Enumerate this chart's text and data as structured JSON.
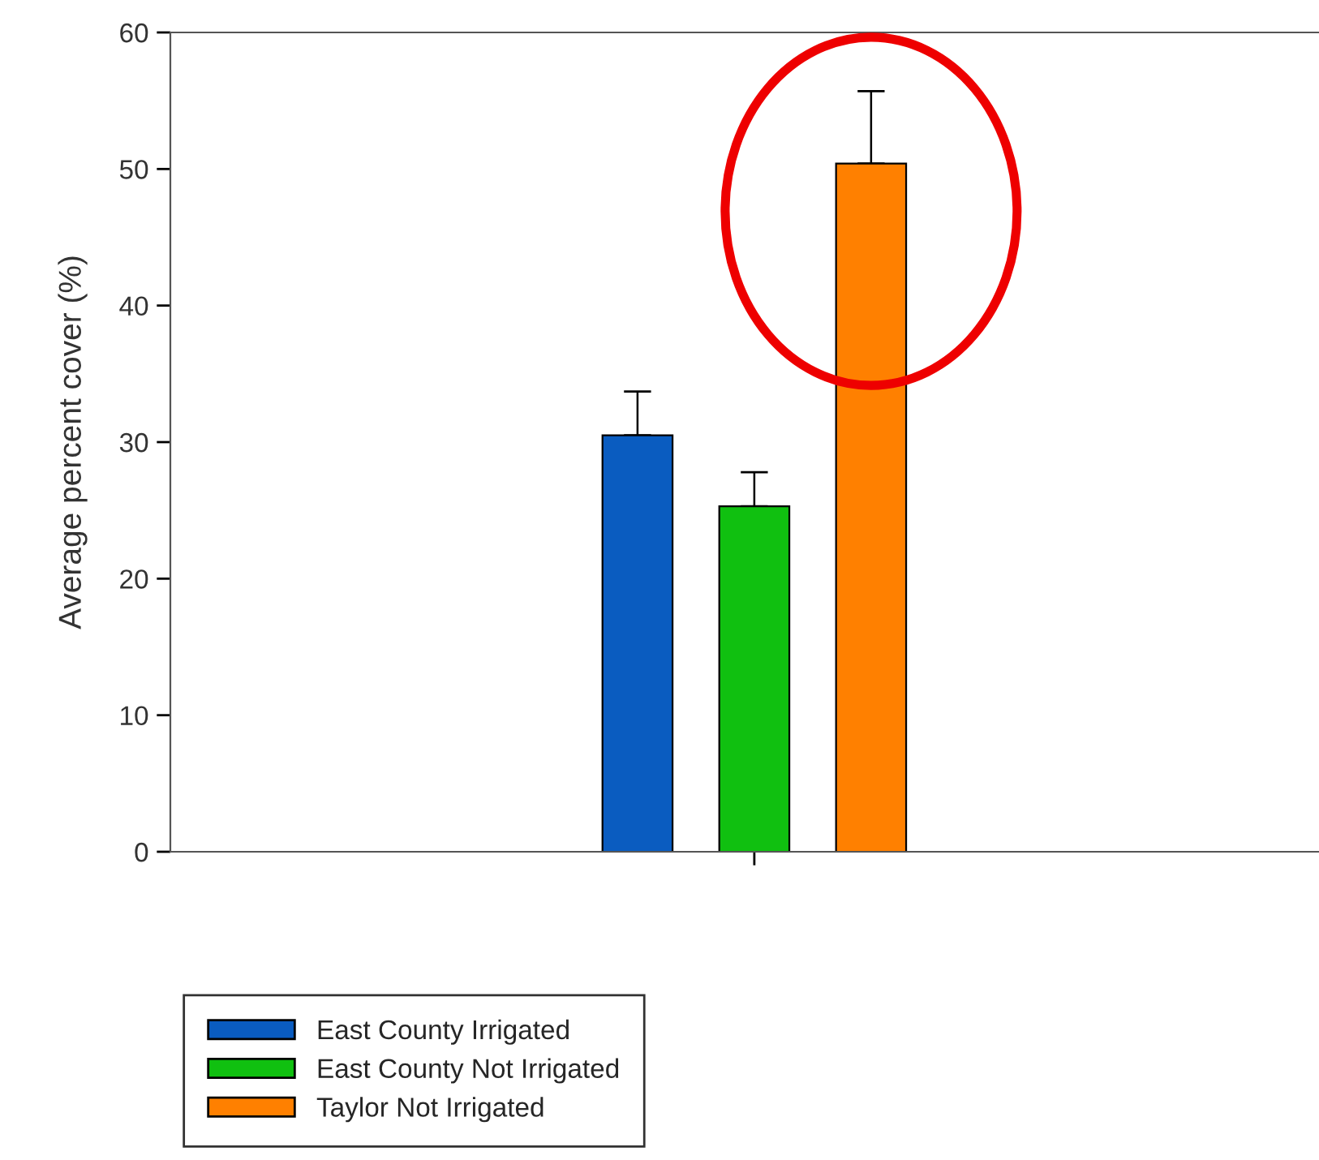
{
  "chart_data": {
    "type": "bar",
    "ylabel": "Average percent cover (%)",
    "categories": [
      null
    ],
    "series": [
      {
        "name": "East County Irrigated",
        "color": "#0a5cc0",
        "values": [
          30.5
        ],
        "errors": [
          [
            30.5,
            33.7
          ]
        ]
      },
      {
        "name": "East County Not Irrigated",
        "color": "#10c010",
        "values": [
          25.3
        ],
        "errors": [
          [
            25.3,
            27.8
          ]
        ]
      },
      {
        "name": "Taylor Not Irrigated",
        "color": "#ff8000",
        "values": [
          50.4
        ],
        "errors": [
          [
            50.4,
            55.7
          ]
        ]
      }
    ],
    "ylim": [
      0,
      60
    ],
    "yticks": [
      0,
      10,
      20,
      30,
      40,
      50,
      60
    ],
    "legend": "bottom left",
    "grid": false
  }
}
